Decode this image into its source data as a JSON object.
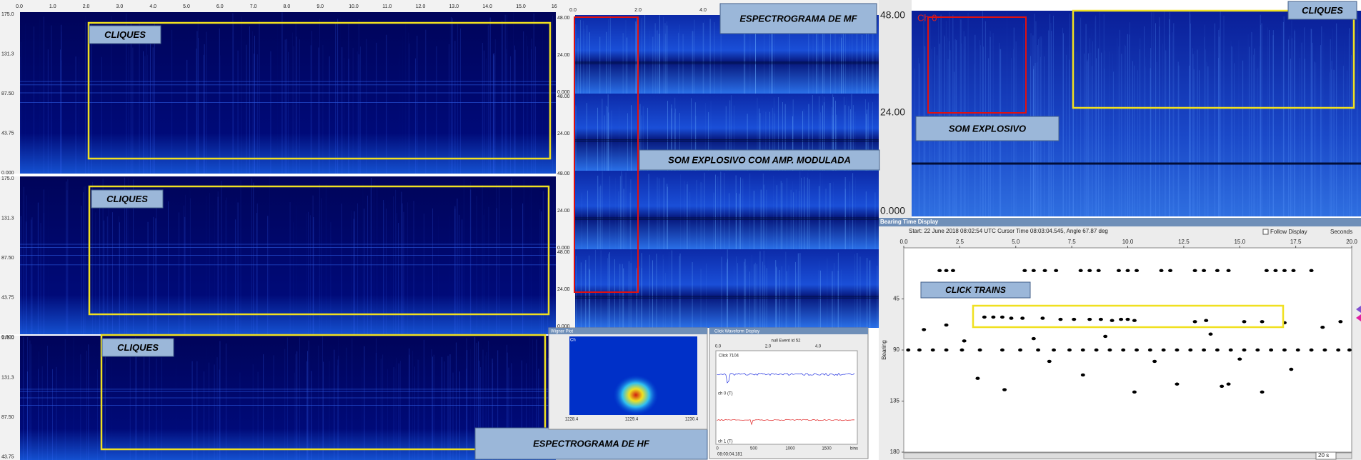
{
  "hf_spectrogram": {
    "time_ticks": [
      "0.0",
      "1.0",
      "2.0",
      "3.0",
      "4.0",
      "5.0",
      "6.0",
      "7.0",
      "8.0",
      "9.0",
      "10.0",
      "11.0",
      "12.0",
      "13.0",
      "14.0",
      "15.0",
      "16"
    ],
    "freq_ticks": [
      "175.0",
      "131.3",
      "87.50",
      "43.75",
      "0.000"
    ],
    "annotations": [
      "CLIQUES",
      "CLIQUES",
      "CLIQUES"
    ],
    "label": "ESPECTROGRAMA DE HF"
  },
  "mf_spectrogram": {
    "time_ticks": [
      "0.0",
      "2.0",
      "4.0"
    ],
    "freq_ticks": [
      "48.00",
      "24.00",
      "0.000"
    ],
    "title": "ESPECTROGRAMA DE MF",
    "annotation": "SOM EXPLOSIVO COM AMP. MODULADA"
  },
  "lf_spectrogram": {
    "freq_ticks": [
      "48.00",
      "24.00",
      "0.000"
    ],
    "channel": "Ch 0",
    "annotations": [
      "CLIQUES",
      "SOM EXPLOSIVO"
    ]
  },
  "bearing_display": {
    "title": "Bearing Time Display",
    "info": "Start: 22 June 2018 08:02:54 UTC   Cursor Time 08:03:04.545, Angle 67.87 deg",
    "follow": "Follow Display",
    "units": "Seconds",
    "y_label": "Bearing",
    "span": "20 s",
    "annotation": "CLICK TRAINS",
    "xlim": [
      0,
      20
    ],
    "ylim": [
      0,
      180
    ],
    "xticks": [
      {
        "value": 0,
        "label": "0.0"
      },
      {
        "value": 2.5,
        "label": "2.5"
      },
      {
        "value": 5,
        "label": "5.0"
      },
      {
        "value": 7.5,
        "label": "7.5"
      },
      {
        "value": 10,
        "label": "10.0"
      },
      {
        "value": 12.5,
        "label": "12.5"
      },
      {
        "value": 15,
        "label": "15.0"
      },
      {
        "value": 17.5,
        "label": "17.5"
      },
      {
        "value": 20,
        "label": "20.0"
      }
    ],
    "yticks": [
      45,
      90,
      135,
      180
    ],
    "points": [
      [
        1.6,
        20
      ],
      [
        1.9,
        20
      ],
      [
        2.2,
        20
      ],
      [
        5.4,
        20
      ],
      [
        5.8,
        20
      ],
      [
        6.3,
        20
      ],
      [
        6.8,
        20
      ],
      [
        7.9,
        20
      ],
      [
        8.3,
        20
      ],
      [
        8.7,
        20
      ],
      [
        9.6,
        20
      ],
      [
        10.0,
        20
      ],
      [
        10.4,
        20
      ],
      [
        11.5,
        20
      ],
      [
        11.9,
        20
      ],
      [
        13.0,
        20
      ],
      [
        13.4,
        20
      ],
      [
        14.0,
        20
      ],
      [
        14.5,
        20
      ],
      [
        16.2,
        20
      ],
      [
        16.6,
        20
      ],
      [
        17.0,
        20
      ],
      [
        17.4,
        20
      ],
      [
        18.2,
        20
      ],
      [
        3.6,
        61
      ],
      [
        4.0,
        61
      ],
      [
        4.4,
        61
      ],
      [
        4.8,
        62
      ],
      [
        5.3,
        62
      ],
      [
        6.2,
        62
      ],
      [
        7.0,
        63
      ],
      [
        7.6,
        63
      ],
      [
        8.3,
        63
      ],
      [
        8.8,
        63
      ],
      [
        9.3,
        64
      ],
      [
        9.7,
        63
      ],
      [
        10.0,
        63
      ],
      [
        10.3,
        64
      ],
      [
        13.0,
        65
      ],
      [
        13.5,
        64
      ],
      [
        15.2,
        65
      ],
      [
        16.0,
        65
      ],
      [
        17.0,
        66
      ],
      [
        0.2,
        90
      ],
      [
        0.7,
        90
      ],
      [
        1.3,
        90
      ],
      [
        1.9,
        90
      ],
      [
        2.6,
        90
      ],
      [
        3.4,
        90
      ],
      [
        4.4,
        90
      ],
      [
        5.2,
        90
      ],
      [
        6.0,
        90
      ],
      [
        6.7,
        90
      ],
      [
        7.4,
        90
      ],
      [
        8.0,
        90
      ],
      [
        8.6,
        90
      ],
      [
        9.2,
        90
      ],
      [
        9.8,
        90
      ],
      [
        10.4,
        90
      ],
      [
        11.0,
        90
      ],
      [
        11.6,
        90
      ],
      [
        12.2,
        90
      ],
      [
        12.8,
        90
      ],
      [
        13.4,
        90
      ],
      [
        14.0,
        90
      ],
      [
        14.6,
        90
      ],
      [
        15.2,
        90
      ],
      [
        15.8,
        90
      ],
      [
        16.4,
        90
      ],
      [
        17.0,
        90
      ],
      [
        17.6,
        90
      ],
      [
        18.2,
        90
      ],
      [
        18.8,
        90
      ],
      [
        19.4,
        90
      ],
      [
        19.9,
        90
      ],
      [
        3.3,
        115
      ],
      [
        8.0,
        112
      ],
      [
        10.3,
        127
      ],
      [
        12.2,
        120
      ],
      [
        14.2,
        122
      ],
      [
        16.0,
        127
      ],
      [
        17.3,
        107
      ],
      [
        2.7,
        82
      ],
      [
        5.8,
        80
      ],
      [
        9.0,
        78
      ],
      [
        13.7,
        76
      ],
      [
        18.7,
        70
      ],
      [
        19.5,
        65
      ],
      [
        6.5,
        100
      ],
      [
        11.2,
        100
      ],
      [
        15.0,
        98
      ],
      [
        1.9,
        68
      ],
      [
        0.9,
        72
      ],
      [
        14.5,
        120
      ],
      [
        4.5,
        125
      ]
    ]
  },
  "wigner_plot": {
    "title": "Wigner Plot",
    "channel": "Ch",
    "x_ticks": [
      "1228.4",
      "1229.4",
      "1230.4"
    ]
  },
  "click_waveform": {
    "title": "Click Waveform Display",
    "event": "null Event id 52",
    "click": "Click 7104",
    "channels": [
      "ch 0 (T)",
      "ch 1 (T)"
    ],
    "top_ticks": [
      "0.0",
      "2.0",
      "4.0"
    ],
    "bottom_ticks": [
      "0",
      "500",
      "1000",
      "1500"
    ],
    "x_unit": "bins",
    "time": "08:03:04.181"
  }
}
